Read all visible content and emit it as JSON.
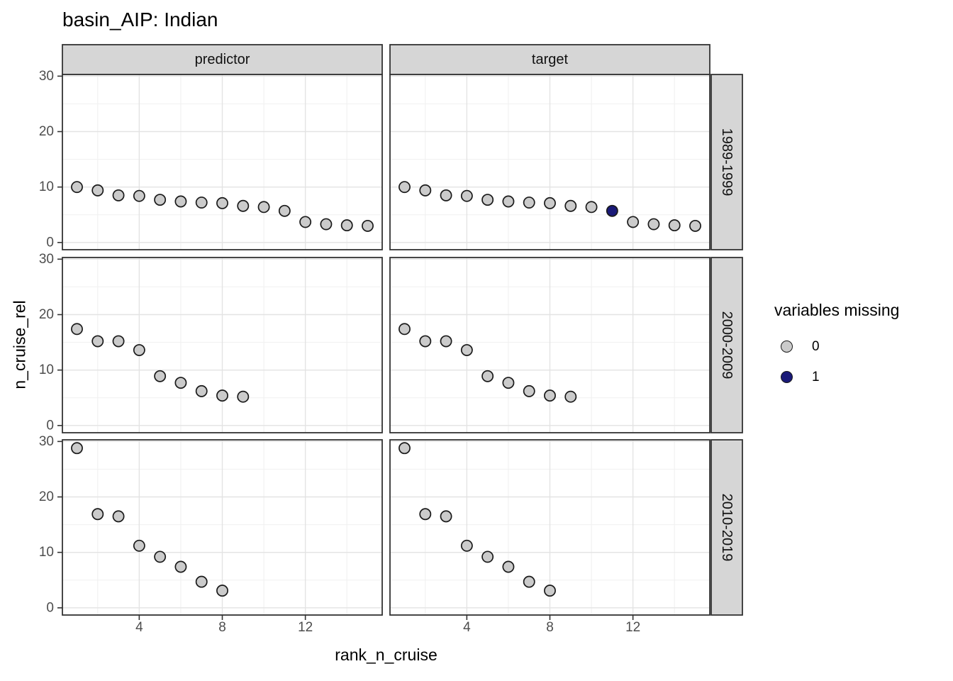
{
  "title": "basin_AIP: Indian",
  "chart_data": {
    "type": "scatter",
    "title": "basin_AIP: Indian",
    "xlabel": "rank_n_cruise",
    "ylabel": "n_cruise_rel",
    "col_facets": [
      "predictor",
      "target"
    ],
    "row_facets": [
      "1989-1999",
      "2000-2009",
      "2010-2019"
    ],
    "axes": {
      "x_ticks": [
        4,
        8,
        12
      ],
      "x_minor": [
        2,
        6,
        10,
        14
      ],
      "y_ticks": [
        0,
        10,
        20,
        30
      ],
      "y_minor": [
        5,
        15,
        25
      ],
      "xlim": [
        0.3,
        15.7
      ],
      "ylim": [
        -1.3,
        30.3
      ],
      "grid": "on"
    },
    "legend": {
      "title": "variables missing",
      "position": "right",
      "items": [
        {
          "label": "0",
          "color": "#cbcbcb"
        },
        {
          "label": "1",
          "color": "#1a1a78"
        }
      ]
    },
    "colors": {
      "point_fill_missing_0": "#cbcbcb",
      "point_fill_missing_1": "#1a1a78",
      "point_stroke": "#1a1a1a",
      "strip_fill": "#d6d6d6",
      "panel_border": "#333333",
      "grid_major": "#e3e3e3",
      "grid_minor": "#f0f0f0"
    },
    "panels": [
      {
        "col": "predictor",
        "row": "1989-1999",
        "x": [
          1,
          2,
          3,
          4,
          5,
          6,
          7,
          8,
          9,
          10,
          11,
          12,
          13,
          14,
          15
        ],
        "y": [
          10.0,
          9.4,
          8.5,
          8.4,
          7.7,
          7.4,
          7.2,
          7.1,
          6.6,
          6.4,
          5.7,
          3.7,
          3.3,
          3.1,
          3.0
        ],
        "missing": [
          0,
          0,
          0,
          0,
          0,
          0,
          0,
          0,
          0,
          0,
          0,
          0,
          0,
          0,
          0
        ]
      },
      {
        "col": "target",
        "row": "1989-1999",
        "x": [
          1,
          2,
          3,
          4,
          5,
          6,
          7,
          8,
          9,
          10,
          11,
          12,
          13,
          14,
          15
        ],
        "y": [
          10.0,
          9.4,
          8.5,
          8.4,
          7.7,
          7.4,
          7.2,
          7.1,
          6.6,
          6.4,
          5.7,
          3.7,
          3.3,
          3.1,
          3.0
        ],
        "missing": [
          0,
          0,
          0,
          0,
          0,
          0,
          0,
          0,
          0,
          0,
          1,
          0,
          0,
          0,
          0
        ]
      },
      {
        "col": "predictor",
        "row": "2000-2009",
        "x": [
          1,
          2,
          3,
          4,
          5,
          6,
          7,
          8,
          9
        ],
        "y": [
          17.4,
          15.2,
          15.2,
          13.6,
          8.9,
          7.7,
          6.2,
          5.4,
          5.2
        ],
        "missing": [
          0,
          0,
          0,
          0,
          0,
          0,
          0,
          0,
          0
        ]
      },
      {
        "col": "target",
        "row": "2000-2009",
        "x": [
          1,
          2,
          3,
          4,
          5,
          6,
          7,
          8,
          9
        ],
        "y": [
          17.4,
          15.2,
          15.2,
          13.6,
          8.9,
          7.7,
          6.2,
          5.4,
          5.2
        ],
        "missing": [
          0,
          0,
          0,
          0,
          0,
          0,
          0,
          0,
          0
        ]
      },
      {
        "col": "predictor",
        "row": "2010-2019",
        "x": [
          1,
          2,
          3,
          4,
          5,
          6,
          7,
          8
        ],
        "y": [
          28.8,
          16.9,
          16.5,
          11.2,
          9.2,
          7.4,
          4.7,
          3.1
        ],
        "missing": [
          0,
          0,
          0,
          0,
          0,
          0,
          0,
          0
        ]
      },
      {
        "col": "target",
        "row": "2010-2019",
        "x": [
          1,
          2,
          3,
          4,
          5,
          6,
          7,
          8
        ],
        "y": [
          28.8,
          16.9,
          16.5,
          11.2,
          9.2,
          7.4,
          4.7,
          3.1
        ],
        "missing": [
          0,
          0,
          0,
          0,
          0,
          0,
          0,
          0
        ]
      }
    ]
  }
}
